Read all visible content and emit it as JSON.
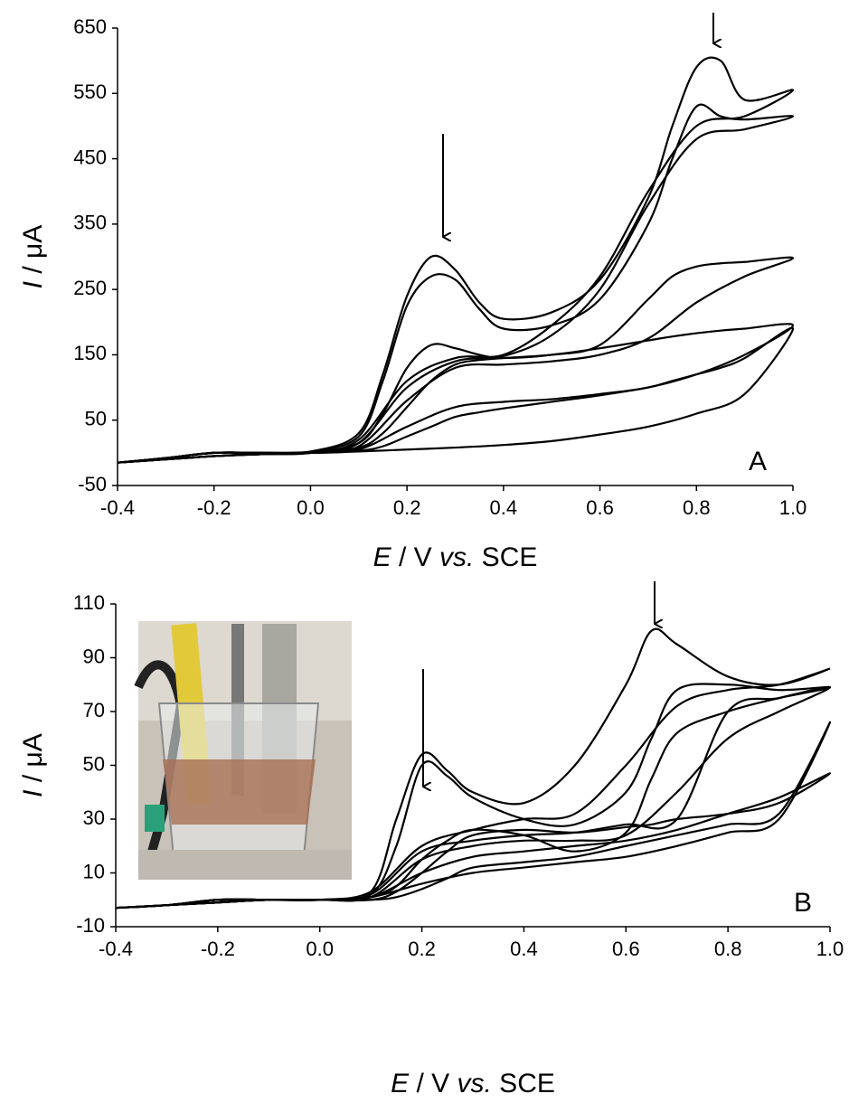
{
  "chart_data": [
    {
      "type": "line",
      "panel_label": "A",
      "y_label_parts": [
        {
          "text": "I",
          "italic": true
        },
        {
          "text": " / μA",
          "italic": false
        }
      ],
      "x_label_parts": [
        {
          "text": "E",
          "italic": true
        },
        {
          "text": " / V ",
          "italic": false
        },
        {
          "text": "vs.",
          "italic": true
        },
        {
          "text": " SCE",
          "italic": false
        }
      ],
      "xlim": [
        -0.4,
        1.0
      ],
      "xticks": [
        -0.4,
        -0.2,
        {
          "value": 0,
          "label": "0.0"
        },
        0.2,
        0.4,
        0.6,
        0.8,
        {
          "value": 1,
          "label": "1.0"
        }
      ],
      "ylim": [
        -50,
        650
      ],
      "yticks": [
        -50,
        50,
        150,
        250,
        350,
        450,
        550,
        650
      ],
      "x": [
        -0.4,
        -0.3,
        -0.2,
        -0.1,
        0,
        0.1,
        0.15,
        0.2,
        0.25,
        0.3,
        0.35,
        0.4,
        0.5,
        0.6,
        0.7,
        0.75,
        0.8,
        0.85,
        0.9,
        1.0,
        0.9,
        0.8,
        0.7,
        0.6,
        0.5,
        0.4,
        0.3,
        0.2,
        0.1,
        0,
        -0.1,
        -0.2,
        -0.3,
        -0.4
      ],
      "series": [
        {
          "color": "#000000",
          "values": [
            -15,
            -8,
            0,
            0,
            2,
            30,
            120,
            240,
            300,
            280,
            230,
            205,
            215,
            265,
            390,
            500,
            590,
            600,
            540,
            555,
            515,
            500,
            400,
            270,
            195,
            150,
            145,
            110,
            20,
            0,
            -2,
            -5,
            -10,
            -15
          ]
        },
        {
          "color": "#000000",
          "values": [
            -15,
            -8,
            0,
            0,
            2,
            25,
            110,
            225,
            270,
            265,
            220,
            190,
            195,
            235,
            350,
            450,
            530,
            515,
            510,
            515,
            495,
            480,
            380,
            250,
            180,
            148,
            140,
            100,
            15,
            0,
            -2,
            -5,
            -10,
            -15
          ]
        },
        {
          "color": "#000000",
          "values": [
            -15,
            -8,
            0,
            0,
            1,
            15,
            60,
            130,
            165,
            160,
            150,
            145,
            150,
            165,
            235,
            270,
            285,
            290,
            292,
            298,
            270,
            230,
            175,
            150,
            140,
            135,
            130,
            80,
            10,
            0,
            -2,
            -5,
            -10,
            -15
          ]
        },
        {
          "color": "#000000",
          "values": [
            -15,
            -8,
            0,
            0,
            1,
            8,
            30,
            70,
            110,
            135,
            142,
            145,
            150,
            160,
            172,
            178,
            183,
            187,
            190,
            195,
            150,
            120,
            100,
            90,
            82,
            78,
            70,
            40,
            5,
            0,
            -2,
            -5,
            -10,
            -15
          ]
        },
        {
          "color": "#000000",
          "values": [
            -15,
            -8,
            0,
            0,
            0,
            3,
            10,
            25,
            40,
            55,
            62,
            68,
            78,
            88,
            100,
            110,
            120,
            130,
            145,
            190,
            90,
            60,
            40,
            28,
            18,
            12,
            8,
            5,
            2,
            0,
            -2,
            -5,
            -10,
            -15
          ]
        }
      ]
    },
    {
      "type": "line",
      "panel_label": "B",
      "y_label_parts": [
        {
          "text": "I",
          "italic": true
        },
        {
          "text": " / μA",
          "italic": false
        }
      ],
      "x_label_parts": [
        {
          "text": "E",
          "italic": true
        },
        {
          "text": " / V ",
          "italic": false
        },
        {
          "text": "vs.",
          "italic": true
        },
        {
          "text": " SCE",
          "italic": false
        }
      ],
      "xlim": [
        -0.4,
        1.0
      ],
      "xticks": [
        -0.4,
        -0.2,
        {
          "value": 0,
          "label": "0.0"
        },
        0.2,
        0.4,
        0.6,
        0.8,
        {
          "value": 1,
          "label": "1.0"
        }
      ],
      "ylim": [
        -10,
        110
      ],
      "yticks": [
        -10,
        10,
        30,
        50,
        70,
        90,
        110
      ],
      "x": [
        -0.4,
        -0.3,
        -0.2,
        -0.1,
        0,
        0.1,
        0.15,
        0.2,
        0.25,
        0.3,
        0.4,
        0.5,
        0.6,
        0.65,
        0.7,
        0.8,
        0.9,
        1.0,
        0.9,
        0.8,
        0.7,
        0.6,
        0.5,
        0.4,
        0.3,
        0.2,
        0.1,
        0,
        -0.1,
        -0.2,
        -0.3,
        -0.4
      ],
      "series": [
        {
          "color": "#000000",
          "values": [
            -3,
            -2,
            0,
            0,
            0,
            3,
            30,
            54,
            48,
            40,
            36,
            50,
            80,
            100,
            95,
            83,
            80,
            86,
            80,
            78,
            72,
            50,
            32,
            30,
            26,
            20,
            3,
            0,
            0,
            -1,
            -2,
            -3
          ]
        },
        {
          "color": "#000000",
          "values": [
            -3,
            -2,
            0,
            0,
            0,
            2,
            20,
            50,
            46,
            38,
            30,
            28,
            40,
            60,
            78,
            80,
            78,
            79,
            75,
            70,
            30,
            28,
            25,
            24,
            22,
            18,
            2,
            0,
            0,
            -1,
            -2,
            -3
          ]
        },
        {
          "color": "#000000",
          "values": [
            -3,
            -2,
            0,
            0,
            0,
            1,
            5,
            15,
            22,
            26,
            24,
            18,
            25,
            45,
            62,
            70,
            75,
            79,
            70,
            60,
            40,
            24,
            22,
            22,
            20,
            15,
            1,
            0,
            0,
            -1,
            -2,
            -3
          ]
        },
        {
          "color": "#000000",
          "values": [
            -3,
            -2,
            0,
            0,
            0,
            0,
            3,
            10,
            18,
            24,
            26,
            25,
            27,
            28,
            30,
            32,
            36,
            47,
            38,
            32,
            26,
            22,
            20,
            18,
            16,
            10,
            1,
            0,
            0,
            -1,
            -2,
            -3
          ]
        },
        {
          "color": "#000000",
          "values": [
            -3,
            -2,
            0,
            0,
            0,
            0,
            1,
            4,
            8,
            12,
            14,
            16,
            20,
            22,
            24,
            28,
            32,
            66,
            30,
            25,
            20,
            16,
            14,
            12,
            10,
            6,
            1,
            0,
            0,
            -1,
            -2,
            -3
          ]
        }
      ]
    }
  ]
}
